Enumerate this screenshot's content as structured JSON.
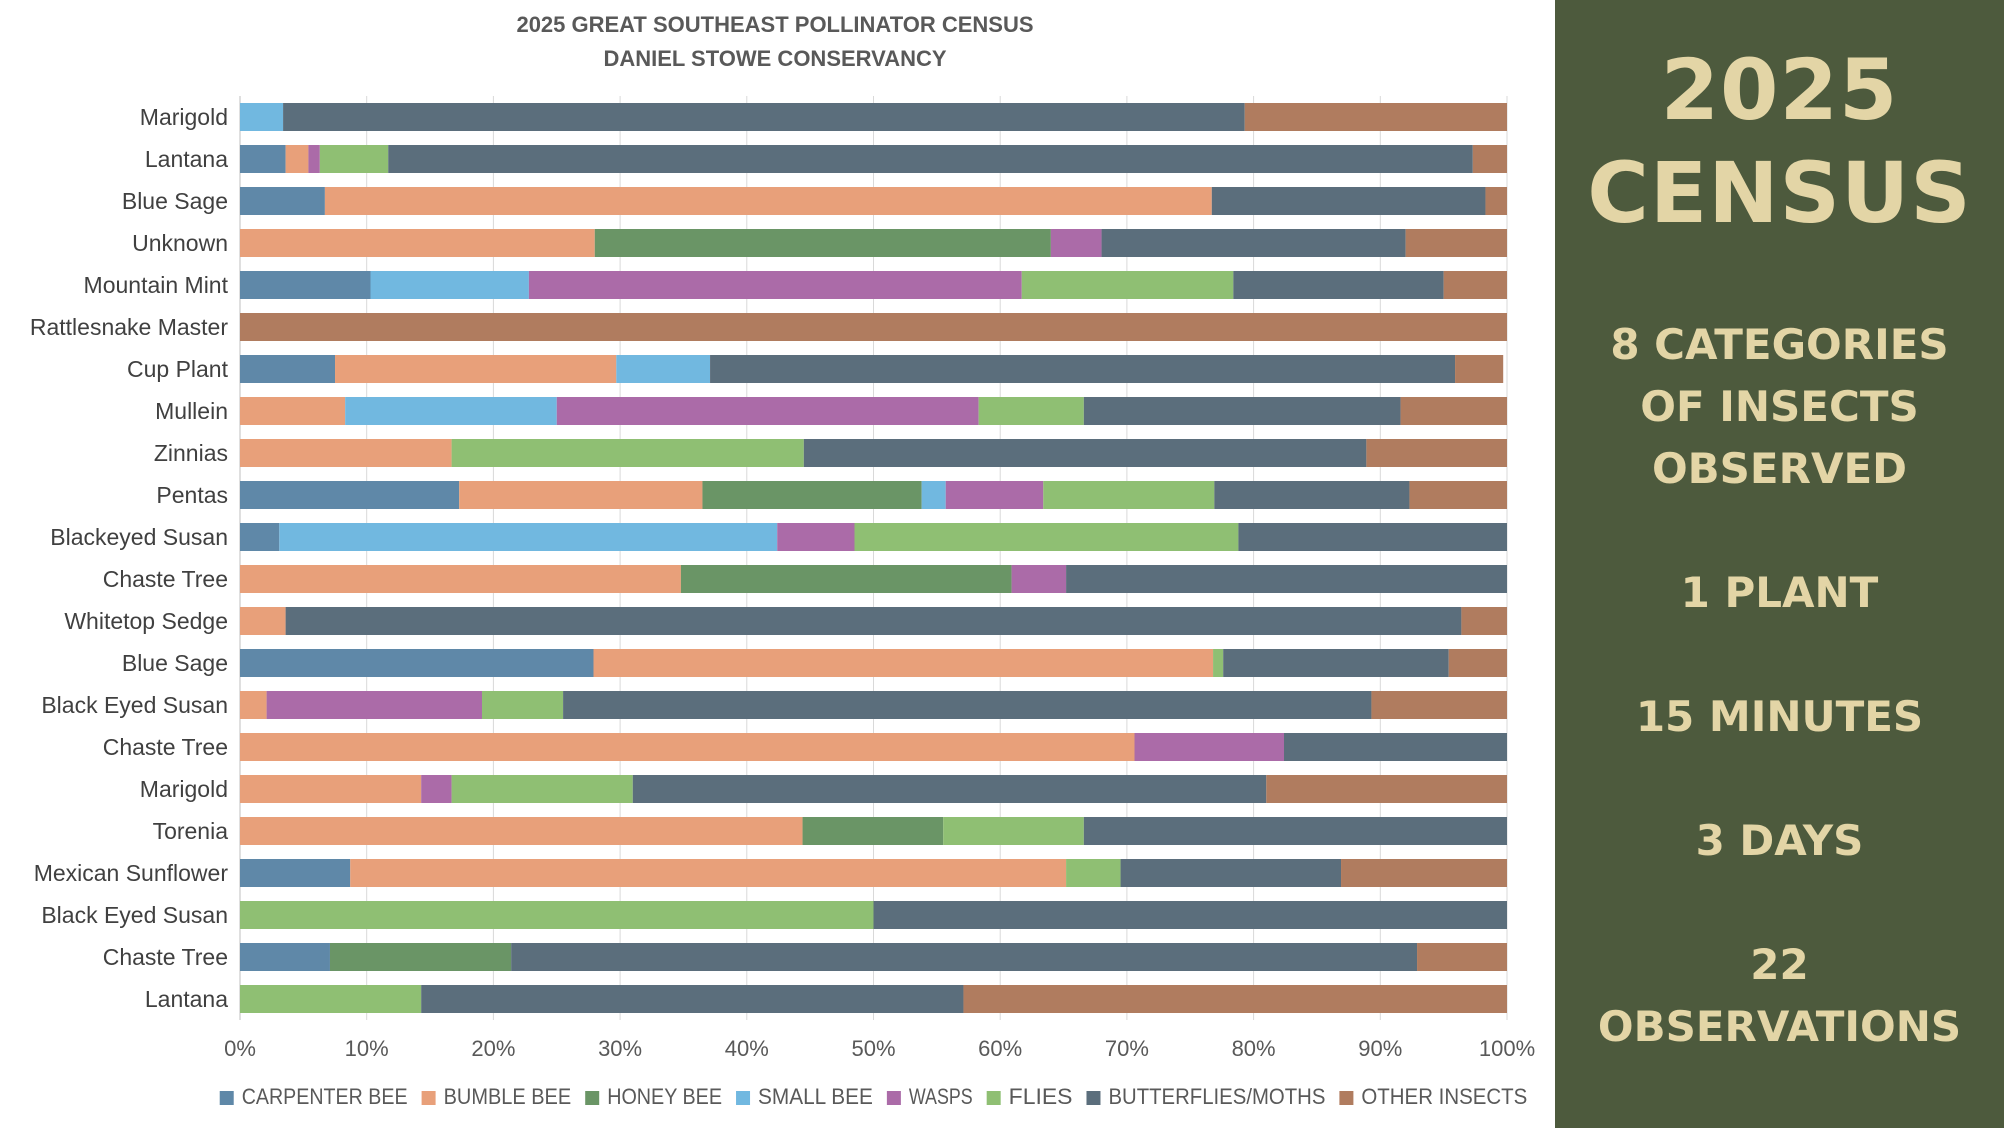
{
  "chart_data": {
    "type": "bar",
    "orientation": "horizontal",
    "stacked": "percent",
    "title": "2025 GREAT SOUTHEAST POLLINATOR CENSUS",
    "subtitle": "DANIEL STOWE CONSERVANCY",
    "xlim": [
      0,
      100
    ],
    "x_ticks": [
      "0%",
      "10%",
      "20%",
      "30%",
      "40%",
      "50%",
      "60%",
      "70%",
      "80%",
      "90%",
      "100%"
    ],
    "grid": "vertical",
    "legend_position": "bottom",
    "categories": [
      "Marigold",
      "Lantana",
      "Blue Sage",
      "Unknown",
      "Mountain Mint",
      "Rattlesnake Master",
      "Cup Plant",
      "Mullein",
      "Zinnias",
      "Pentas",
      "Blackeyed Susan",
      "Chaste Tree",
      "Whitetop Sedge",
      "Blue Sage",
      "Black Eyed Susan",
      "Chaste Tree",
      "Marigold",
      "Torenia",
      "Mexican Sunflower",
      "Black Eyed Susan",
      "Chaste Tree",
      "Lantana"
    ],
    "series": [
      {
        "name": "CARPENTER BEE",
        "color": "#5f88a8",
        "values": [
          0,
          3.6,
          6.7,
          0,
          10.3,
          0,
          7.5,
          0,
          0,
          17.3,
          3.1,
          0,
          0,
          27.9,
          0,
          0,
          0,
          0,
          8.7,
          0,
          7.1,
          0
        ]
      },
      {
        "name": "BUMBLE BEE",
        "color": "#e8a07a",
        "values": [
          0,
          1.8,
          70,
          28,
          0,
          0,
          22.2,
          8.3,
          16.7,
          19.2,
          0,
          34.8,
          3.6,
          48.9,
          2.1,
          70.6,
          14.3,
          44.4,
          56.5,
          0,
          0,
          0
        ]
      },
      {
        "name": "HONEY BEE",
        "color": "#6a9566",
        "values": [
          0,
          0,
          0,
          36,
          0,
          0,
          0,
          0,
          0,
          17.3,
          0,
          26.1,
          0,
          0,
          0,
          0,
          0,
          11.1,
          0,
          0,
          14.3,
          0
        ]
      },
      {
        "name": "SMALL BEE",
        "color": "#71b8e0",
        "values": [
          3.4,
          0,
          0,
          0,
          12.5,
          0,
          7.4,
          16.7,
          0,
          1.9,
          39.3,
          0,
          0,
          0,
          0,
          0,
          0,
          0,
          0,
          0,
          0,
          0
        ]
      },
      {
        "name": "WASPS",
        "color": "#ab6ba8",
        "values": [
          0,
          0.9,
          0,
          4,
          38.9,
          0,
          0,
          33.3,
          0,
          7.7,
          6.1,
          4.3,
          0,
          0,
          17.0,
          11.8,
          2.4,
          0,
          0,
          0,
          0,
          0
        ]
      },
      {
        "name": "FLIES",
        "color": "#8fbf73",
        "values": [
          0,
          5.4,
          0,
          0,
          16.7,
          0,
          0,
          8.3,
          27.8,
          13.5,
          30.3,
          0,
          0,
          0.8,
          6.4,
          0,
          14.3,
          11.1,
          4.3,
          50,
          0,
          14.3
        ]
      },
      {
        "name": "BUTTERFLIES/MOTHS",
        "color": "#5b6e7c",
        "values": [
          75.9,
          85.6,
          21.6,
          24,
          16.6,
          0,
          58.8,
          25,
          44.4,
          15.4,
          21.2,
          34.8,
          92.8,
          17.8,
          63.8,
          17.6,
          50,
          33.4,
          17.4,
          50,
          71.5,
          42.8
        ]
      },
      {
        "name": "OTHER INSECTS",
        "color": "#b07c5f",
        "values": [
          20.7,
          2.7,
          1.7,
          8,
          5,
          100,
          3.8,
          8.4,
          11.1,
          7.7,
          0,
          0,
          3.6,
          4.6,
          10.7,
          0,
          19,
          0,
          13.1,
          0,
          7.1,
          42.9
        ]
      }
    ]
  },
  "panel": {
    "headline": [
      "2025",
      "CENSUS"
    ],
    "stats": [
      "8 CATEGORIES",
      "OF INSECTS",
      "OBSERVED",
      "1 PLANT",
      "15 MINUTES",
      "3 DAYS",
      "22",
      "OBSERVATIONS"
    ],
    "background": "#4d5a3d",
    "text_color": "#e3d5a6"
  }
}
